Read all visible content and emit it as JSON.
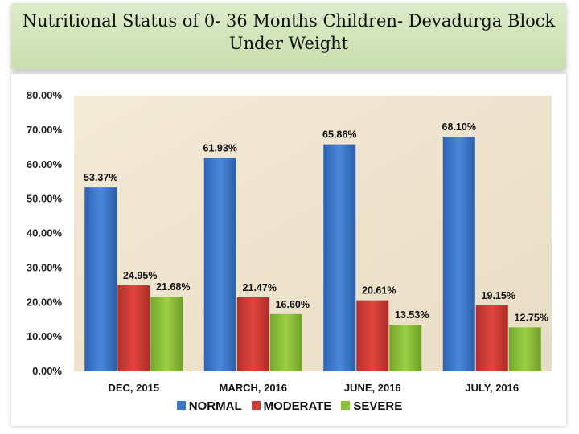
{
  "title": {
    "line1": "Nutritional Status of  0- 36 Months Children- Devadurga Block",
    "line2": "Under Weight"
  },
  "colors": {
    "NORMAL": "#3a76c9",
    "MODERATE": "#d23b35",
    "SEVERE": "#8bc03a",
    "title_bg": "#d4e6bd",
    "plot_bg": "#efe4d0"
  },
  "chart_data": {
    "type": "bar",
    "categories": [
      "DEC, 2015",
      "MARCH, 2016",
      "JUNE, 2016",
      "JULY, 2016"
    ],
    "series": [
      {
        "name": "NORMAL",
        "values": [
          53.37,
          61.93,
          65.86,
          68.1
        ],
        "labels": [
          "53.37%",
          "61.93%",
          "65.86%",
          "68.10%"
        ]
      },
      {
        "name": "MODERATE",
        "values": [
          24.95,
          21.47,
          20.61,
          19.15
        ],
        "labels": [
          "24.95%",
          "21.47%",
          "20.61%",
          "19.15%"
        ]
      },
      {
        "name": "SEVERE",
        "values": [
          21.68,
          16.6,
          13.53,
          12.75
        ],
        "labels": [
          "21.68%",
          "16.60%",
          "13.53%",
          "12.75%"
        ]
      }
    ],
    "ylim": [
      0,
      80
    ],
    "yticks": [
      "0.00%",
      "10.00%",
      "20.00%",
      "30.00%",
      "40.00%",
      "50.00%",
      "60.00%",
      "70.00%",
      "80.00%"
    ],
    "grid": false,
    "legend_position": "bottom"
  }
}
